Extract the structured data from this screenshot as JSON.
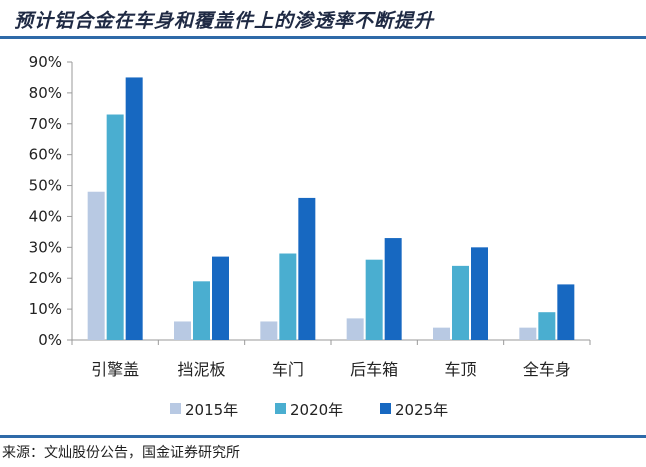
{
  "header": {
    "title": "预计铝合金在车身和覆盖件上的渗透率不断提升"
  },
  "footer": {
    "source": "来源：文灿股份公告，国金证券研究所"
  },
  "colors": {
    "rule": "#2e6aa8",
    "series": [
      "#b8c9e3",
      "#4aaed0",
      "#1768c1"
    ]
  },
  "chart_data": {
    "type": "bar",
    "title": "预计铝合金在车身和覆盖件上的渗透率不断提升",
    "xlabel": "",
    "ylabel": "",
    "ylim": [
      0,
      90
    ],
    "yticks": [
      "0%",
      "10%",
      "20%",
      "30%",
      "40%",
      "50%",
      "60%",
      "70%",
      "80%",
      "90%"
    ],
    "grid": false,
    "legend_position": "bottom",
    "categories": [
      "引擎盖",
      "挡泥板",
      "车门",
      "后车箱",
      "车顶",
      "全车身"
    ],
    "series": [
      {
        "name": "2015年",
        "values": [
          48,
          6,
          6,
          7,
          4,
          4
        ]
      },
      {
        "name": "2020年",
        "values": [
          73,
          19,
          28,
          26,
          24,
          9
        ]
      },
      {
        "name": "2025年",
        "values": [
          85,
          27,
          46,
          33,
          30,
          18
        ]
      }
    ]
  }
}
